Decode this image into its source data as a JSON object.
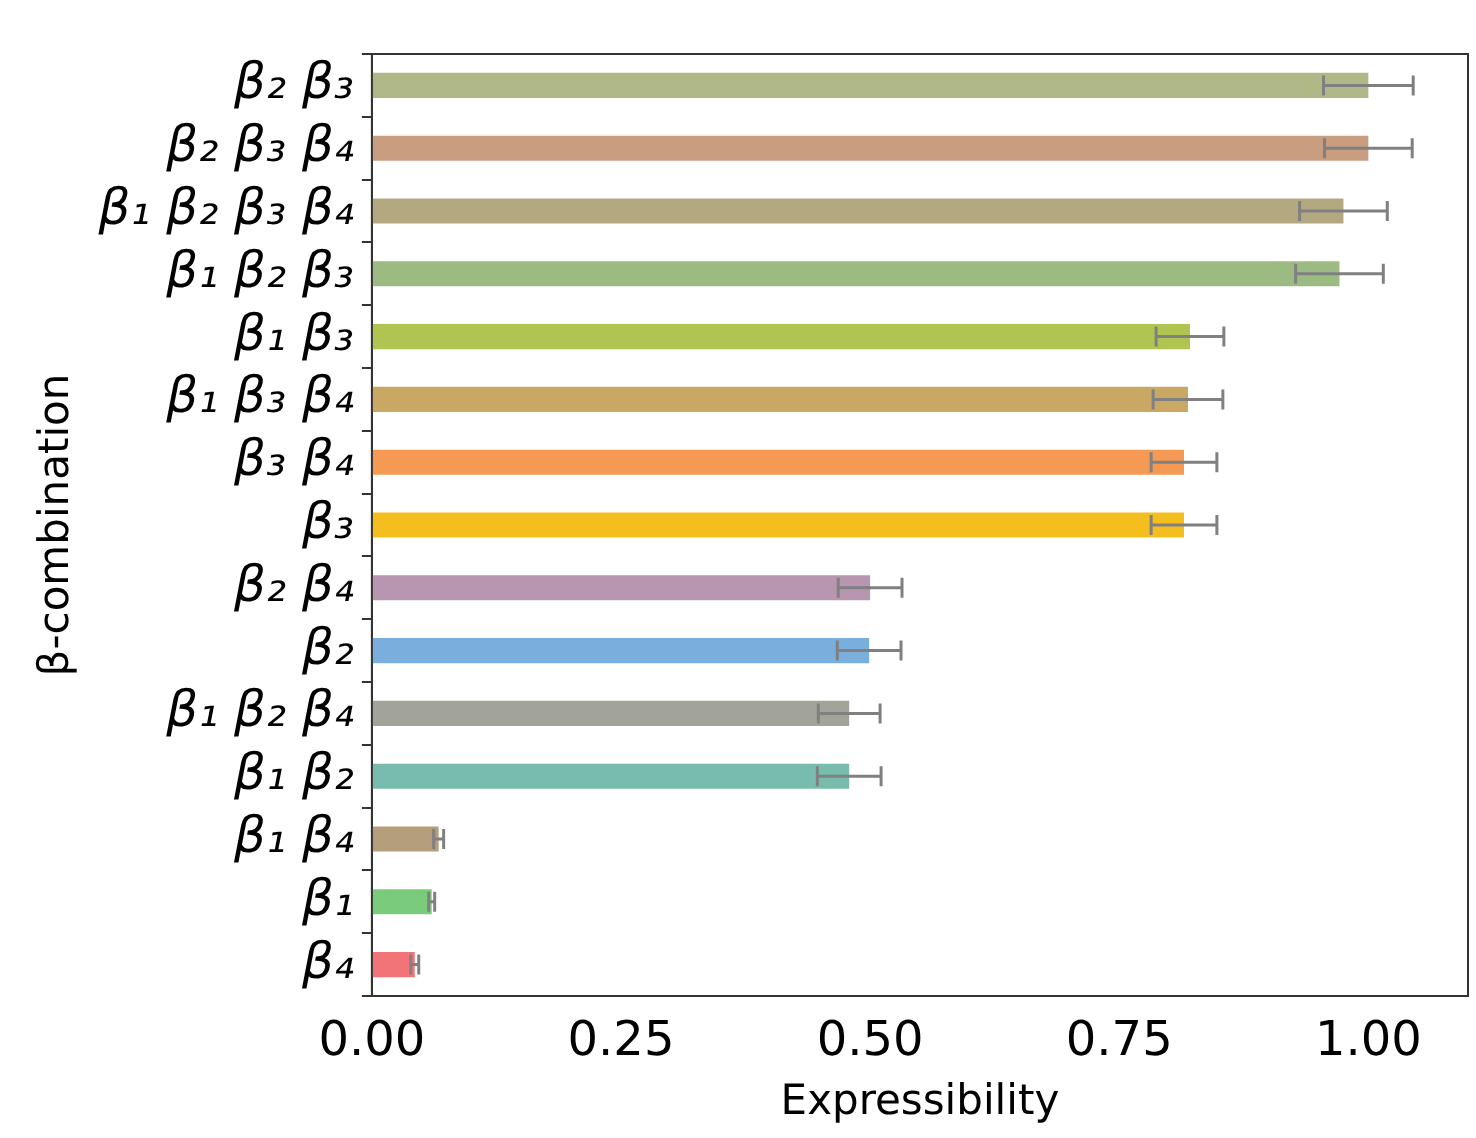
{
  "chart_data": {
    "type": "bar",
    "orientation": "horizontal",
    "xlabel": "Expressibility",
    "ylabel": "β-combination",
    "categories": [
      "β₂ β₃",
      "β₂ β₃ β₄",
      "β₁ β₂ β₃ β₄",
      "β₁ β₂ β₃",
      "β₁ β₃",
      "β₁ β₃ β₄",
      "β₃ β₄",
      "β₃",
      "β₂ β₄",
      "β₂",
      "β₁ β₂ β₄",
      "β₁ β₂",
      "β₁ β₄",
      "β₁",
      "β₄"
    ],
    "values": [
      1.0,
      1.0,
      0.975,
      0.971,
      0.821,
      0.819,
      0.815,
      0.815,
      0.5,
      0.499,
      0.479,
      0.479,
      0.067,
      0.06,
      0.043
    ],
    "errors": [
      0.045,
      0.044,
      0.044,
      0.044,
      0.034,
      0.035,
      0.033,
      0.033,
      0.032,
      0.032,
      0.031,
      0.032,
      0.005,
      0.003,
      0.004
    ],
    "colors": [
      "#b0b888",
      "#c99d80",
      "#b4a880",
      "#9bbb82",
      "#b0c452",
      "#c8a862",
      "#f49a54",
      "#f4bf1e",
      "#b996b0",
      "#7aaedc",
      "#a2a49a",
      "#77bcac",
      "#b49e7c",
      "#7acc7c",
      "#f27478"
    ],
    "xlim": [
      0,
      1.1
    ],
    "xticks": [
      {
        "value": 0,
        "label": "0.00"
      },
      {
        "value": 0.25,
        "label": "0.25"
      },
      {
        "value": 0.5,
        "label": "0.50"
      },
      {
        "value": 0.75,
        "label": "0.75"
      },
      {
        "value": 1,
        "label": "1.00"
      }
    ],
    "grid": false,
    "legend": false
  }
}
